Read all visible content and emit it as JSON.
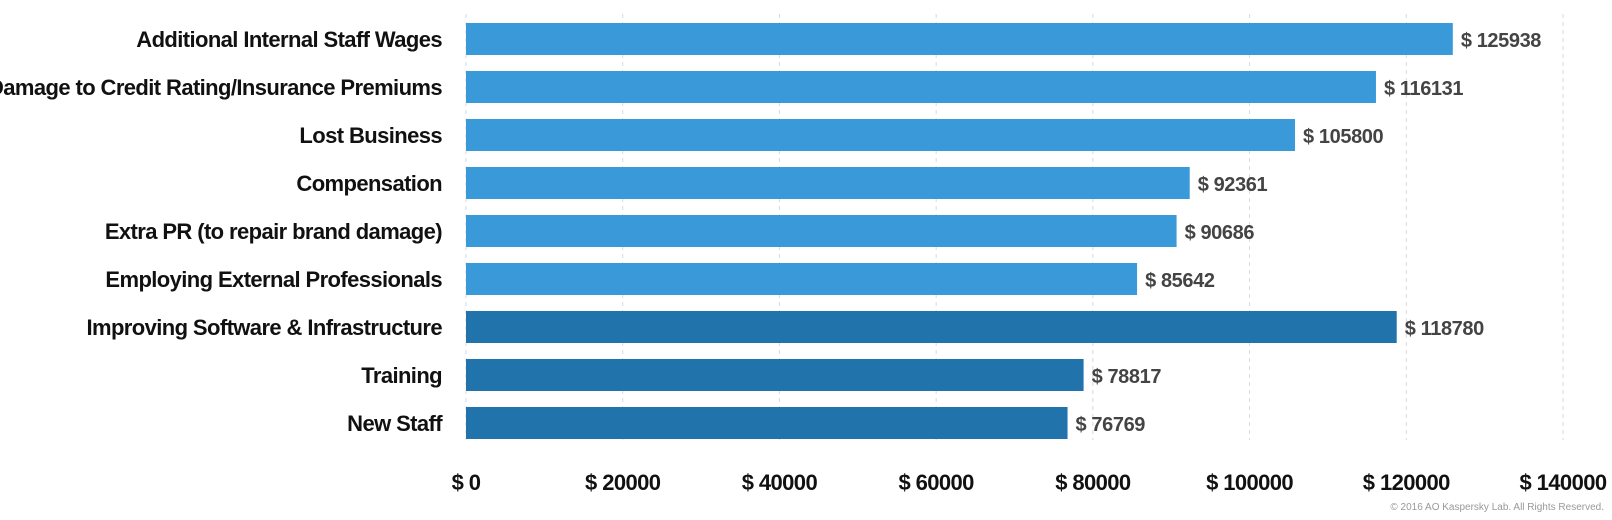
{
  "chart_data": {
    "type": "bar",
    "orientation": "horizontal",
    "categories": [
      "Additional Internal Staff Wages",
      "Damage to Credit Rating/Insurance Premiums",
      "Lost Business",
      "Compensation",
      "Extra PR (to repair brand damage)",
      "Employing External Professionals",
      "Improving Software & Infrastructure",
      "Training",
      "New Staff"
    ],
    "values": [
      125938,
      116131,
      105800,
      92361,
      90686,
      85642,
      118780,
      78817,
      76769
    ],
    "value_labels": [
      "$ 125938",
      "$ 116131",
      "$ 105800",
      "$ 92361",
      "$ 90686",
      "$ 85642",
      "$ 118780",
      "$ 78817",
      "$ 76769"
    ],
    "bar_colors": [
      "#3a9ad9",
      "#3a9ad9",
      "#3a9ad9",
      "#3a9ad9",
      "#3a9ad9",
      "#3a9ad9",
      "#2174ab",
      "#2174ab",
      "#2174ab"
    ],
    "xlim": [
      0,
      140000
    ],
    "x_ticks": [
      0,
      20000,
      40000,
      60000,
      80000,
      100000,
      120000,
      140000
    ],
    "x_tick_labels": [
      "$ 0",
      "$ 20000",
      "$ 40000",
      "$ 60000",
      "$ 80000",
      "$ 100000",
      "$ 120000",
      "$ 140000"
    ],
    "grid": true,
    "title": "",
    "xlabel": "",
    "ylabel": ""
  },
  "footer": {
    "copyright": "© 2016 AO Kaspersky Lab. All Rights Reserved."
  }
}
